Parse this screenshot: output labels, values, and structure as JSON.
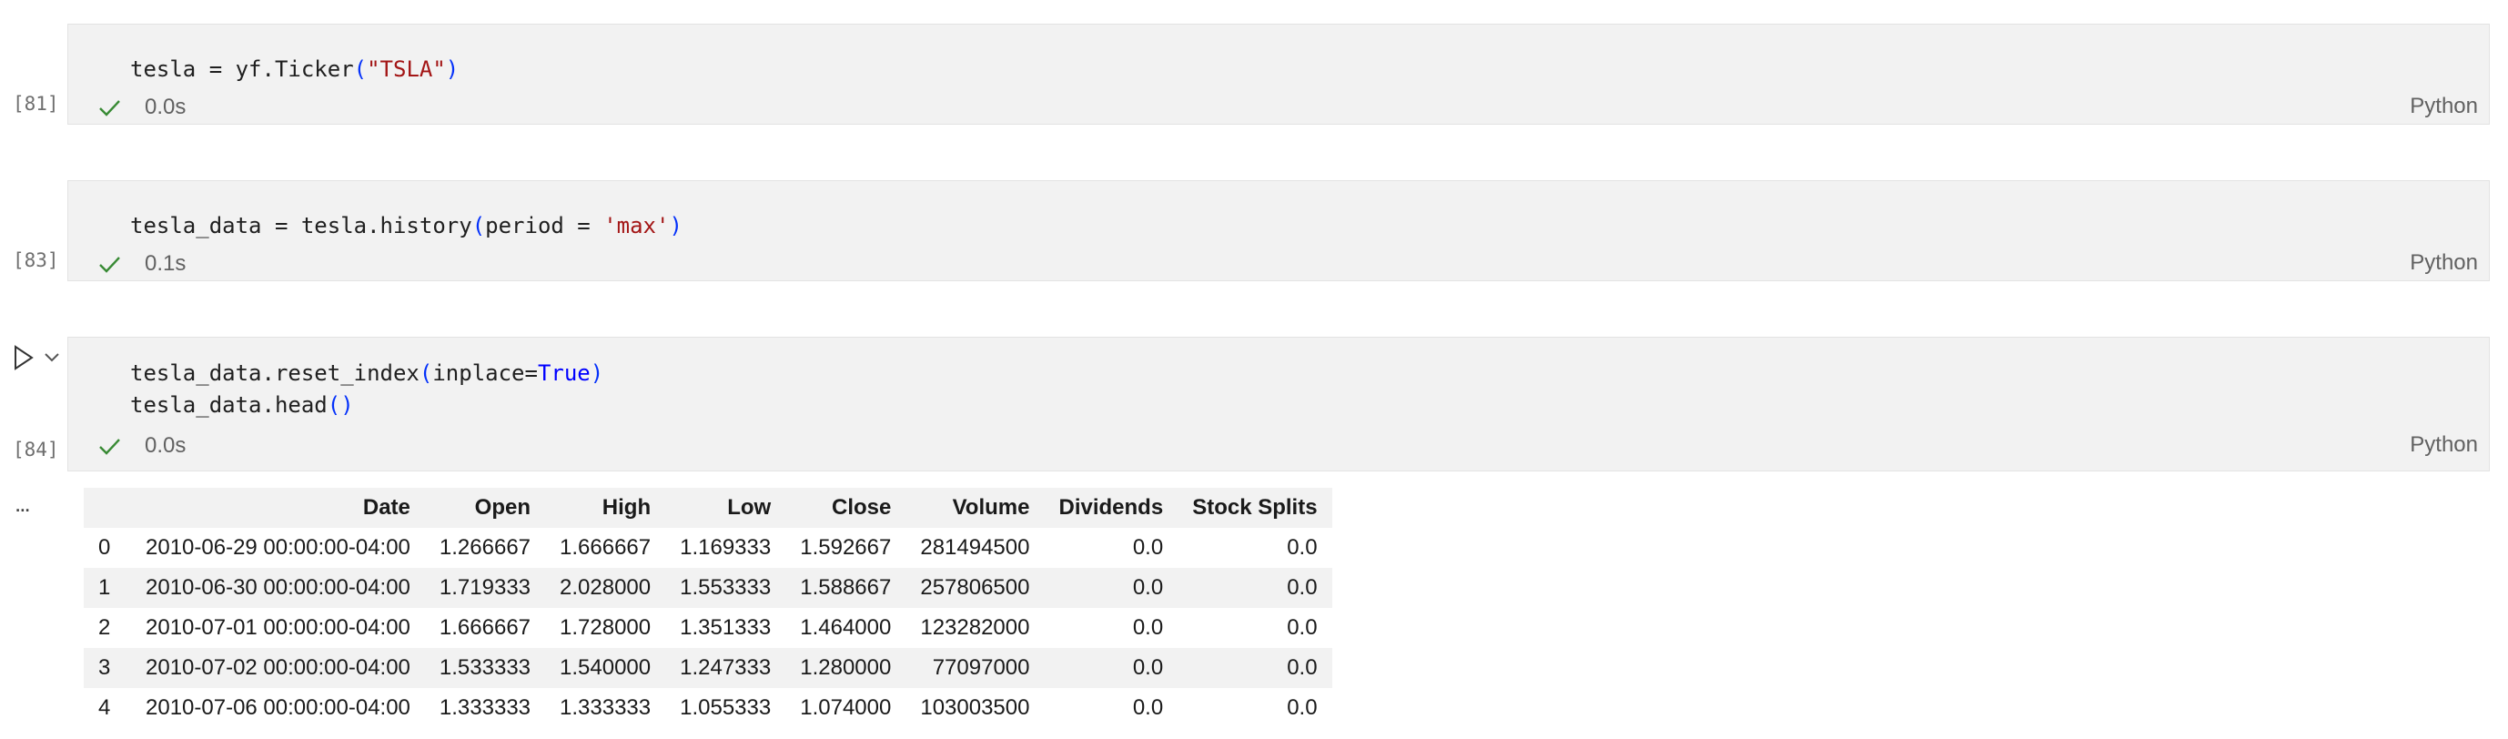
{
  "cells": [
    {
      "exec_count": "[81]",
      "code_tokens": [
        {
          "text": "tesla = yf.Ticker",
          "cls": ""
        },
        {
          "text": "(",
          "cls": "paren"
        },
        {
          "text": "\"TSLA\"",
          "cls": "str"
        },
        {
          "text": ")",
          "cls": "paren"
        }
      ],
      "exec_time": "0.0s",
      "language": "Python"
    },
    {
      "exec_count": "[83]",
      "code_tokens": [
        {
          "text": "tesla_data = tesla.history",
          "cls": ""
        },
        {
          "text": "(",
          "cls": "paren"
        },
        {
          "text": "period = ",
          "cls": ""
        },
        {
          "text": "'max'",
          "cls": "str"
        },
        {
          "text": ")",
          "cls": "paren"
        }
      ],
      "exec_time": "0.1s",
      "language": "Python"
    },
    {
      "exec_count": "[84]",
      "code_line1": [
        {
          "text": "tesla_data.reset_index",
          "cls": ""
        },
        {
          "text": "(",
          "cls": "paren"
        },
        {
          "text": "inplace=",
          "cls": ""
        },
        {
          "text": "True",
          "cls": "kw"
        },
        {
          "text": ")",
          "cls": "paren"
        }
      ],
      "code_line2": [
        {
          "text": "tesla_data.head",
          "cls": ""
        },
        {
          "text": "()",
          "cls": "paren"
        }
      ],
      "exec_time": "0.0s",
      "language": "Python"
    }
  ],
  "output_more": "...",
  "table": {
    "columns": [
      "",
      "Date",
      "Open",
      "High",
      "Low",
      "Close",
      "Volume",
      "Dividends",
      "Stock Splits"
    ],
    "rows": [
      [
        "0",
        "2010-06-29 00:00:00-04:00",
        "1.266667",
        "1.666667",
        "1.169333",
        "1.592667",
        "281494500",
        "0.0",
        "0.0"
      ],
      [
        "1",
        "2010-06-30 00:00:00-04:00",
        "1.719333",
        "2.028000",
        "1.553333",
        "1.588667",
        "257806500",
        "0.0",
        "0.0"
      ],
      [
        "2",
        "2010-07-01 00:00:00-04:00",
        "1.666667",
        "1.728000",
        "1.351333",
        "1.464000",
        "123282000",
        "0.0",
        "0.0"
      ],
      [
        "3",
        "2010-07-02 00:00:00-04:00",
        "1.533333",
        "1.540000",
        "1.247333",
        "1.280000",
        "77097000",
        "0.0",
        "0.0"
      ],
      [
        "4",
        "2010-07-06 00:00:00-04:00",
        "1.333333",
        "1.333333",
        "1.055333",
        "1.074000",
        "103003500",
        "0.0",
        "0.0"
      ]
    ]
  },
  "colors": {
    "success_check": "#388a34",
    "string": "#a31515",
    "paren": "#0431fa",
    "keyword": "#0000ff"
  }
}
